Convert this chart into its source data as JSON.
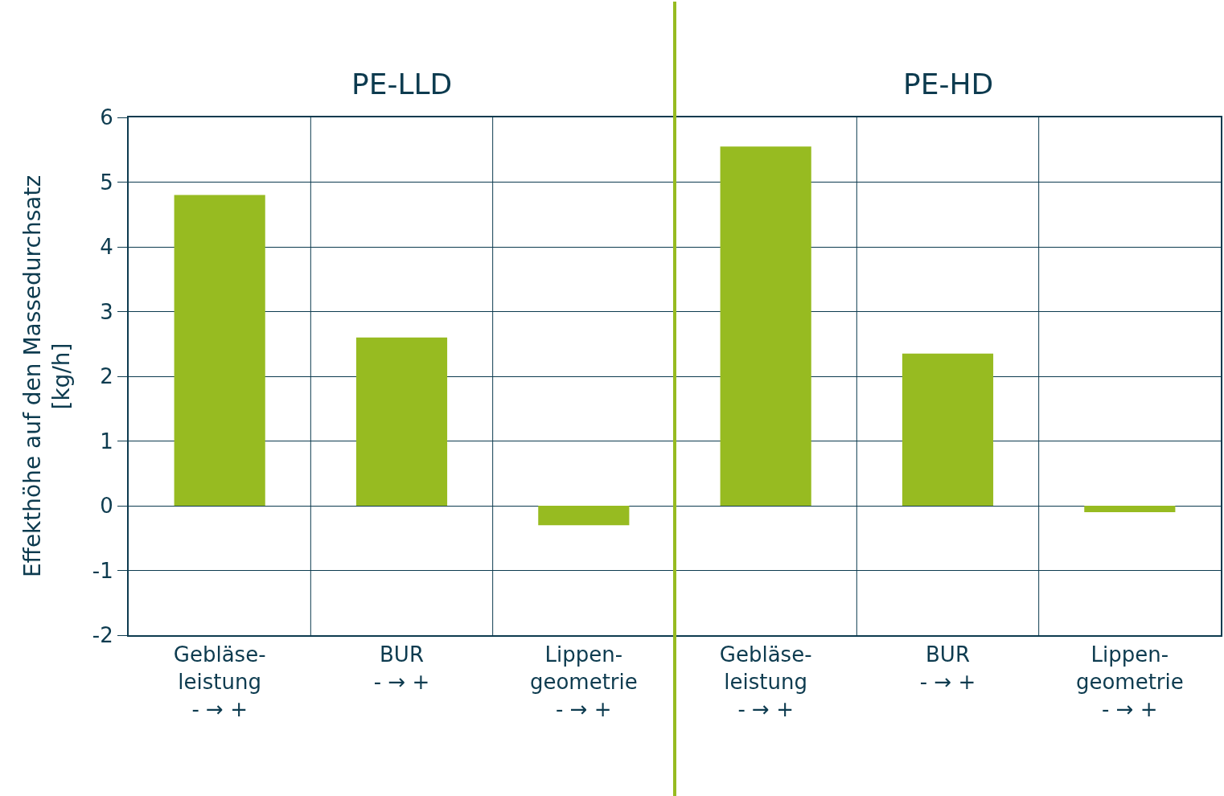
{
  "chart_data": {
    "type": "bar",
    "categories": [
      "Gebläse-\nleistung\n- → +",
      "BUR\n- → +",
      "Lippen-\ngeometrie\n- → +",
      "Gebläse-\nleistung\n- → +",
      "BUR\n- → +",
      "Lippen-\ngeometrie\n- → +"
    ],
    "values": [
      4.8,
      2.6,
      -0.3,
      5.55,
      2.35,
      -0.1
    ],
    "color": "#97bb21",
    "ylabel": "Effekthöhe auf den Massedurchsatz\n[kg/h]",
    "ylim": [
      -2,
      6
    ],
    "yticks": [
      -2,
      -1,
      0,
      1,
      2,
      3,
      4,
      5,
      6
    ],
    "grid": true,
    "annotations": [
      "PE-LLD",
      "PE-HD"
    ]
  }
}
